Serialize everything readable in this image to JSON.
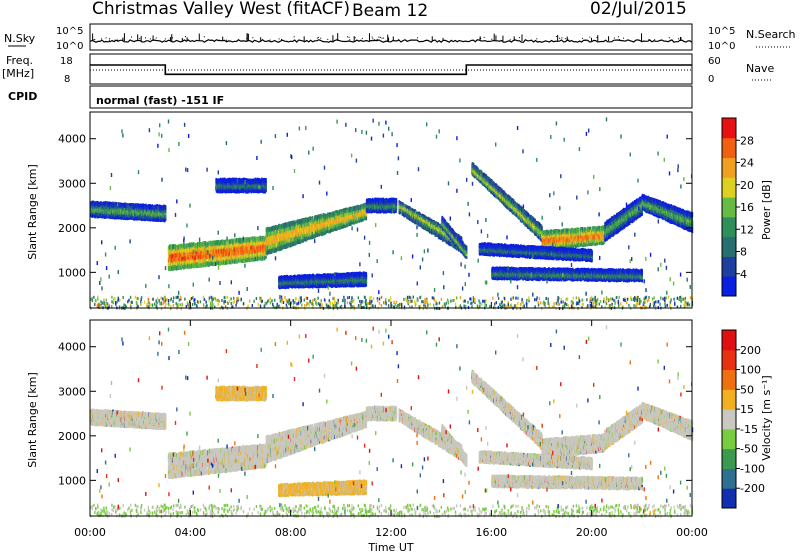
{
  "header": {
    "station": "Christmas Valley West (fitACF)",
    "beam": "Beam 12",
    "date": "02/Jul/2015"
  },
  "top_panels": {
    "nsky_label": "N.Sky",
    "nsearch_label": "N.Search",
    "noise_ticks": [
      "10^5",
      "10^0"
    ],
    "freq_label_1": "Freq.",
    "freq_label_2": "[MHz]",
    "freq_ticks": [
      "18",
      "8"
    ],
    "nave_label": "Nave",
    "nave_ticks": [
      "60",
      "0"
    ],
    "cpid_label": "CPID",
    "cpid_text": "normal (fast) -151 IF",
    "freq_trace": [
      {
        "t": 0,
        "mhz": 14.8
      },
      {
        "t": 3,
        "mhz": 14.8
      },
      {
        "t": 3,
        "mhz": 10.6
      },
      {
        "t": 15,
        "mhz": 10.6
      },
      {
        "t": 15,
        "mhz": 14.8
      },
      {
        "t": 24,
        "mhz": 14.8
      }
    ]
  },
  "chart_data": [
    {
      "type": "heatmap",
      "quantity": "Power",
      "ylabel": "Slant Range [km]",
      "y_ticks": [
        1000,
        2000,
        3000,
        4000
      ],
      "ylim": [
        200,
        4600
      ],
      "x_ticks": [
        "00:00",
        "04:00",
        "08:00",
        "12:00",
        "16:00",
        "20:00",
        "00:00"
      ],
      "xlim_hours": [
        0,
        24
      ],
      "colorbar": {
        "label": "Power [dB]",
        "ticks": [
          4,
          8,
          12,
          16,
          20,
          24,
          28
        ],
        "range": [
          0,
          32
        ],
        "colors": [
          "#0a1fe0",
          "#1e3fa0",
          "#2a6f70",
          "#2f8f5a",
          "#66bb44",
          "#ddd020",
          "#f0a020",
          "#f06010",
          "#e81010"
        ]
      }
    },
    {
      "type": "heatmap",
      "quantity": "Velocity",
      "ylabel": "Slant Range [km]",
      "y_ticks": [
        1000,
        2000,
        3000,
        4000
      ],
      "ylim": [
        200,
        4600
      ],
      "xlabel": "Time UT",
      "x_ticks": [
        "00:00",
        "04:00",
        "08:00",
        "12:00",
        "16:00",
        "20:00",
        "00:00"
      ],
      "xlim_hours": [
        0,
        24
      ],
      "colorbar": {
        "label": "Velocity [m s⁻¹]",
        "ticks": [
          200,
          100,
          50,
          15,
          -15,
          -50,
          -100,
          -200
        ],
        "colors": [
          "#1030b0",
          "#2f6f8f",
          "#3a9a50",
          "#78cc40",
          "#c8c8c0",
          "#f2b020",
          "#f07010",
          "#e83010",
          "#e01010"
        ]
      }
    }
  ]
}
